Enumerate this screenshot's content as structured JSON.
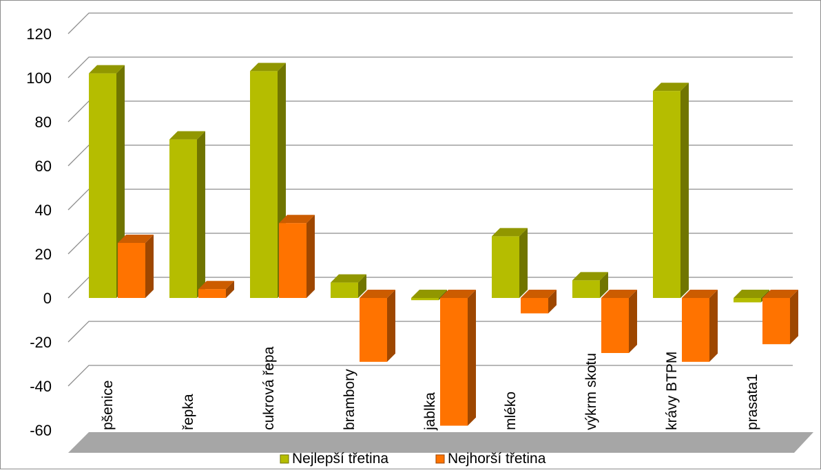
{
  "chart_data": {
    "type": "bar",
    "categories": [
      "pšenice",
      "řepka",
      "cukrová řepa",
      "brambory",
      "jablka",
      "mléko",
      "výkrm skotu",
      "krávy BTPM",
      "prasata1"
    ],
    "series": [
      {
        "name": "Nejlepší třetina",
        "color": "#b5bd00",
        "values": [
          102,
          72,
          103,
          7,
          -1,
          28,
          8,
          94,
          -2
        ]
      },
      {
        "name": "Nejhorší třetina",
        "color": "#ff7300",
        "values": [
          25,
          4,
          34,
          -29,
          -58,
          -7,
          -25,
          -29,
          -21
        ]
      }
    ],
    "y_ticks": [
      "120",
      "100",
      "80",
      "60",
      "40",
      "20",
      "0",
      "-20",
      "-40",
      "-60"
    ],
    "ylim": [
      -60,
      120
    ],
    "grid": true,
    "legend_position": "bottom"
  }
}
